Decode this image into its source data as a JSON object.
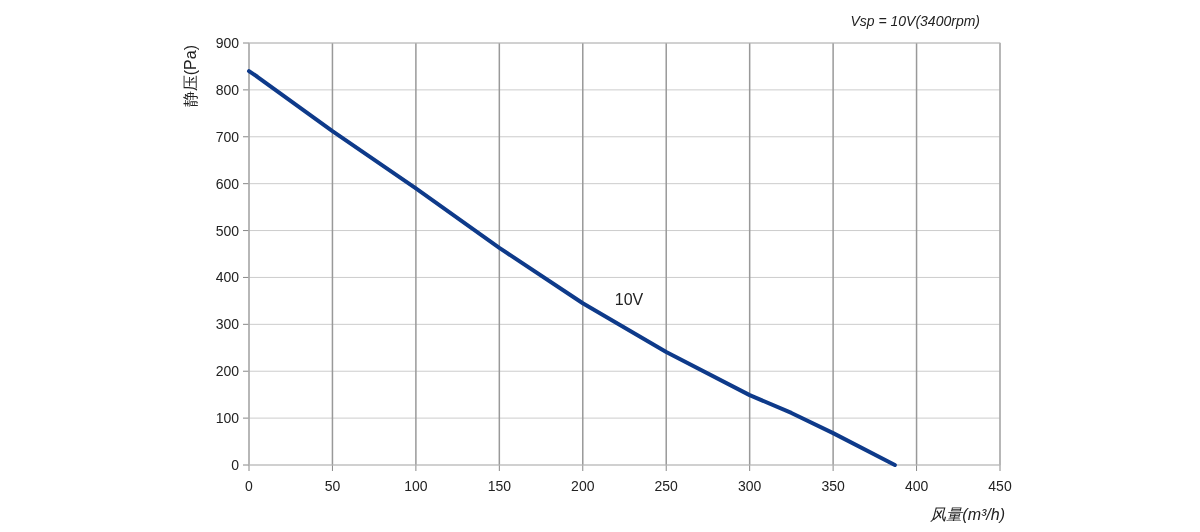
{
  "chart_data": {
    "type": "line",
    "xlabel": "风量(m³/h)",
    "ylabel": "静压(Pa)",
    "annotations": [
      "Vsp = 10V(3400rpm)"
    ],
    "xlim": [
      0,
      450
    ],
    "ylim": [
      0,
      900
    ],
    "xticks": [
      0,
      50,
      100,
      150,
      200,
      250,
      300,
      350,
      400,
      450
    ],
    "yticks": [
      0,
      100,
      200,
      300,
      400,
      500,
      600,
      700,
      800,
      900
    ],
    "grid": true,
    "series": [
      {
        "name": "10V",
        "color": "#0e3a8a",
        "x": [
          0,
          5,
          50,
          100,
          150,
          200,
          250,
          300,
          325,
          350,
          387
        ],
        "values": [
          840,
          828,
          712,
          590,
          463,
          345,
          241,
          149,
          111,
          68,
          0
        ]
      }
    ]
  }
}
